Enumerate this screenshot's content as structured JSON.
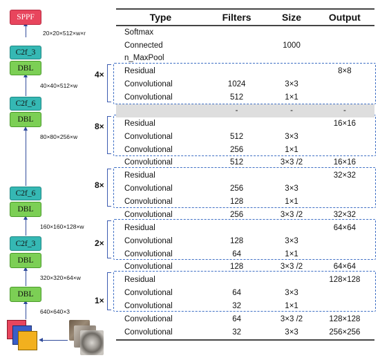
{
  "backbone": {
    "sppf": "SPPF",
    "c2f_3_top": "C2f_3",
    "dbl_1": "DBL",
    "c2f_6_a": "C2f_6",
    "dbl_2": "DBL",
    "c2f_6_b": "C2f_6",
    "dbl_3": "DBL",
    "c2f_3_bottom": "C2f_3",
    "dbl_4": "DBL",
    "dbl_5": "DBL",
    "dims": {
      "d1": "20×20×512×w×r",
      "d2": "40×40×512×w",
      "d3": "80×80×256×w",
      "d4": "160×160×128×w",
      "d5": "320×320×64×w",
      "d6": "640×640×3"
    }
  },
  "table": {
    "headers": {
      "type": "Type",
      "filters": "Filters",
      "size": "Size",
      "output": "Output"
    },
    "rows": [
      {
        "type": "Softmax",
        "filters": "",
        "size": "",
        "output": ""
      },
      {
        "type": "Connected",
        "filters": "",
        "size": "1000",
        "output": ""
      },
      {
        "type": "n_MaxPool",
        "filters": "",
        "size": "",
        "output": ""
      },
      {
        "type": "Residual",
        "filters": "",
        "size": "",
        "output": "8×8"
      },
      {
        "type": "Convolutional",
        "filters": "1024",
        "size": "3×3",
        "output": ""
      },
      {
        "type": "Convolutional",
        "filters": "512",
        "size": "1×1",
        "output": ""
      },
      {
        "type": "",
        "filters": "-",
        "size": "-",
        "output": "-"
      },
      {
        "type": "Residual",
        "filters": "",
        "size": "",
        "output": "16×16"
      },
      {
        "type": "Convolutional",
        "filters": "512",
        "size": "3×3",
        "output": ""
      },
      {
        "type": "Convolutional",
        "filters": "256",
        "size": "1×1",
        "output": ""
      },
      {
        "type": "Convolutional",
        "filters": "512",
        "size": "3×3 /2",
        "output": "16×16"
      },
      {
        "type": "Residual",
        "filters": "",
        "size": "",
        "output": "32×32"
      },
      {
        "type": "Convolutional",
        "filters": "256",
        "size": "3×3",
        "output": ""
      },
      {
        "type": "Convolutional",
        "filters": "128",
        "size": "1×1",
        "output": ""
      },
      {
        "type": "Convolutional",
        "filters": "256",
        "size": "3×3 /2",
        "output": "32×32"
      },
      {
        "type": "Residual",
        "filters": "",
        "size": "",
        "output": "64×64"
      },
      {
        "type": "Convolutional",
        "filters": "128",
        "size": "3×3",
        "output": ""
      },
      {
        "type": "Convolutional",
        "filters": "64",
        "size": "1×1",
        "output": ""
      },
      {
        "type": "Convolutional",
        "filters": "128",
        "size": "3×3 /2",
        "output": "64×64"
      },
      {
        "type": "Residual",
        "filters": "",
        "size": "",
        "output": "128×128"
      },
      {
        "type": "Convolutional",
        "filters": "64",
        "size": "3×3",
        "output": ""
      },
      {
        "type": "Convolutional",
        "filters": "32",
        "size": "1×1",
        "output": ""
      },
      {
        "type": "Convolutional",
        "filters": "64",
        "size": "3×3 /2",
        "output": "128×128"
      },
      {
        "type": "Convolutional",
        "filters": "32",
        "size": "3×3",
        "output": "256×256"
      }
    ]
  },
  "multipliers": {
    "m1": "4×",
    "m2": "8×",
    "m3": "8×",
    "m4": "2×",
    "m5": "1×"
  },
  "colors": {
    "sppf": "#e8455d",
    "c2f": "#35b8b4",
    "dbl": "#7ccf55",
    "arrow": "#2f4a9a",
    "group_border": "#3c6dc4",
    "gray_row": "#dedede"
  }
}
